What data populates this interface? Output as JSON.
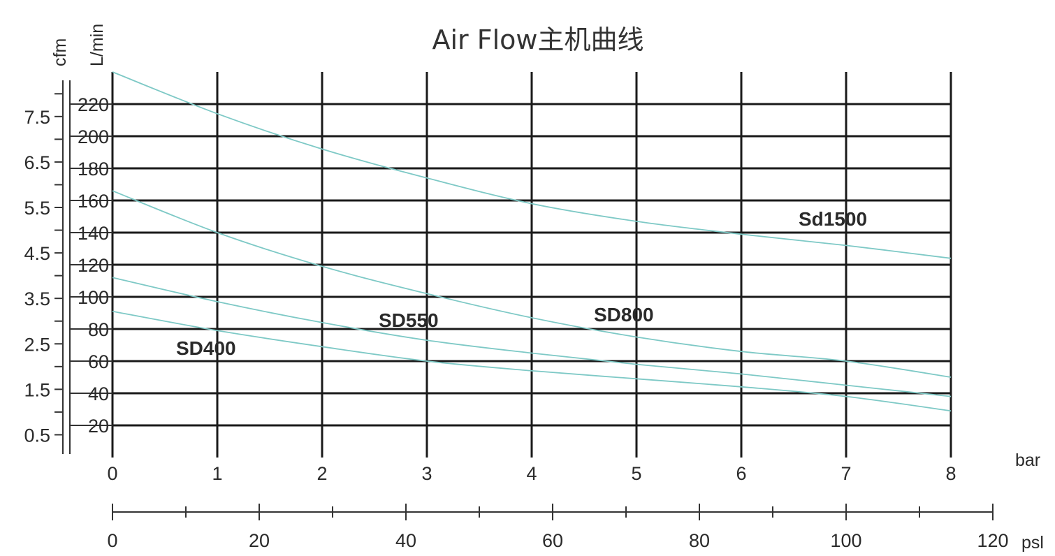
{
  "chart_data": {
    "type": "line",
    "title": "Air Flow主机曲线",
    "x": {
      "label": "bar",
      "range": [
        0,
        8
      ],
      "ticks": [
        0,
        1,
        2,
        3,
        4,
        5,
        6,
        7,
        8
      ]
    },
    "x2": {
      "label": "psl",
      "range": [
        0,
        120
      ],
      "major_ticks": [
        0,
        20,
        40,
        60,
        80,
        100,
        120
      ],
      "minor_step": 10
    },
    "y": {
      "label": "L/min",
      "range": [
        0,
        240
      ],
      "ticks": [
        20,
        40,
        60,
        80,
        100,
        120,
        140,
        160,
        180,
        200,
        220
      ]
    },
    "y2": {
      "label": "cfm",
      "ticks": [
        0.5,
        1.5,
        2.5,
        3.5,
        4.5,
        5.5,
        6.5,
        7.5
      ]
    },
    "grid": true,
    "line_color": "#7ec9c6",
    "series": [
      {
        "name": "Sd1500",
        "x": [
          0,
          1,
          2,
          3,
          4,
          5,
          6,
          7,
          8
        ],
        "y": [
          240,
          214,
          192,
          174,
          158,
          147,
          139,
          132,
          124
        ]
      },
      {
        "name": "SD800",
        "x": [
          0,
          1,
          2,
          3,
          4,
          5,
          6,
          7,
          8
        ],
        "y": [
          166,
          140,
          119,
          102,
          87,
          75,
          66,
          60,
          50
        ]
      },
      {
        "name": "SD550",
        "x": [
          0,
          1,
          2,
          3,
          4,
          5,
          6,
          7,
          8
        ],
        "y": [
          112,
          97,
          84,
          73,
          65,
          58,
          52,
          45,
          38
        ]
      },
      {
        "name": "SD400",
        "x": [
          0,
          1,
          2,
          3,
          4,
          5,
          6,
          7,
          8
        ],
        "y": [
          91,
          79,
          69,
          60,
          54,
          49,
          44,
          38,
          29
        ]
      }
    ]
  }
}
